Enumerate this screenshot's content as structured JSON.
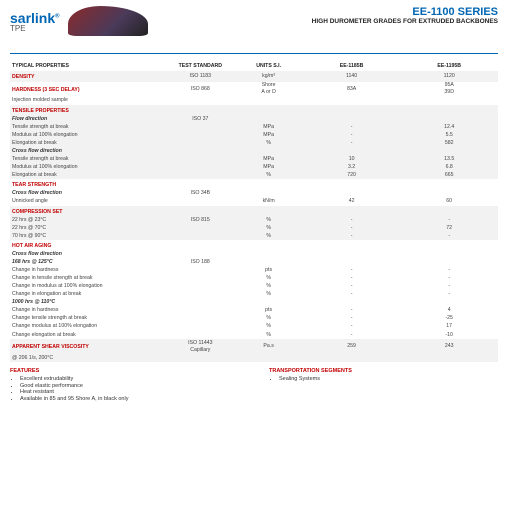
{
  "brand": {
    "name": "sarlink",
    "sub": "TPE",
    "reg": "®"
  },
  "series_title": "EE-1100 SERIES",
  "subtitle": "HIGH DUROMETER GRADES FOR EXTRUDED BACKBONES",
  "cols": {
    "prop": "TYPICAL PROPERTIES",
    "std": "TEST STANDARD",
    "unit": "UNITS S.I.",
    "v1": "EE-1185B",
    "v2": "EE-1195B"
  },
  "sections": [
    {
      "title": "DENSITY",
      "alt": true,
      "rows": [
        {
          "label": "",
          "std": "ISO 1183",
          "unit": "kg/m³",
          "v1": "1140",
          "v2": "1120"
        }
      ]
    },
    {
      "title": "HARDNESS (3 SEC DELAY)",
      "alt": false,
      "rows": [
        {
          "label": "Injection molded sample",
          "std": "ISO 868",
          "unit": "Shore\nA or D",
          "v1": "83A",
          "v2": "95A\n39D"
        }
      ]
    },
    {
      "title": "TENSILE PROPERTIES",
      "alt": true,
      "groups": [
        {
          "em": "Flow direction",
          "rows": [
            {
              "label": "Tensile strength at break",
              "std": "ISO 37",
              "unit": "MPa",
              "v1": "-",
              "v2": "12.4"
            },
            {
              "label": "Modulus at 100% elongation",
              "std": "",
              "unit": "MPa",
              "v1": "-",
              "v2": "5.5"
            },
            {
              "label": "Elongation at break",
              "std": "",
              "unit": "%",
              "v1": "-",
              "v2": "582"
            }
          ]
        },
        {
          "em": "Cross flow direction",
          "rows": [
            {
              "label": "Tensile strength at break",
              "std": "",
              "unit": "MPa",
              "v1": "10",
              "v2": "13.5"
            },
            {
              "label": "Modulus at 100% elongation",
              "std": "",
              "unit": "MPa",
              "v1": "3.2",
              "v2": "6.8"
            },
            {
              "label": "Elongation at break",
              "std": "",
              "unit": "%",
              "v1": "720",
              "v2": "665"
            }
          ]
        }
      ]
    },
    {
      "title": "TEAR STRENGTH",
      "alt": false,
      "groups": [
        {
          "em": "Cross flow direction",
          "rows": [
            {
              "label": "Unnicked angle",
              "std": "ISO 34B",
              "unit": "kN/m",
              "v1": "42",
              "v2": "60"
            }
          ]
        }
      ]
    },
    {
      "title": "COMPRESSION SET",
      "alt": true,
      "rows": [
        {
          "label": "22 hrs @ 23°C",
          "std": "ISO 815",
          "unit": "%",
          "v1": "-",
          "v2": "-"
        },
        {
          "label": "22 hrs @ 70°C",
          "std": "",
          "unit": "%",
          "v1": "-",
          "v2": "72"
        },
        {
          "label": "70 hrs @ 90°C",
          "std": "",
          "unit": "%",
          "v1": "-",
          "v2": "-"
        }
      ]
    },
    {
      "title": "HOT AIR AGING",
      "alt": false,
      "groups": [
        {
          "em": "Cross flow direction",
          "rows": []
        },
        {
          "em": "168 hrs @ 125°C",
          "rows": [
            {
              "label": "Change in hardness",
              "std": "ISO 188",
              "unit": "pts",
              "v1": "-",
              "v2": "-"
            },
            {
              "label": "Change in tensile strength at break",
              "std": "",
              "unit": "%",
              "v1": "-",
              "v2": "-"
            },
            {
              "label": "Change in modulus at 100% elongation",
              "std": "",
              "unit": "%",
              "v1": "-",
              "v2": "-"
            },
            {
              "label": "Change in elongation at break",
              "std": "",
              "unit": "%",
              "v1": "-",
              "v2": "-"
            }
          ]
        },
        {
          "em": "1000 hrs @ 110°C",
          "rows": [
            {
              "label": "Change in hardness",
              "std": "",
              "unit": "pts",
              "v1": "-",
              "v2": "4"
            },
            {
              "label": "Change tensile strength at break",
              "std": "",
              "unit": "%",
              "v1": "-",
              "v2": "-25"
            },
            {
              "label": "Change modulus at 100% elongation",
              "std": "",
              "unit": "%",
              "v1": "-",
              "v2": "17"
            },
            {
              "label": "Change elongation at break",
              "std": "",
              "unit": "%",
              "v1": "-",
              "v2": "-10"
            }
          ]
        }
      ]
    },
    {
      "title": "APPARENT SHEAR VISCOSITY",
      "alt": true,
      "rows": [
        {
          "label": "@ 206 1/s, 200°C",
          "std": "ISO 11443\nCapillary",
          "unit": "Pa.s",
          "v1": "259",
          "v2": "243"
        }
      ]
    }
  ],
  "features_title": "FEATURES",
  "features": [
    "Excellent extrudability",
    "Good elastic performance",
    "Heat resistant",
    "Available in 85 and 95 Shore A, in black only"
  ],
  "transport_title": "TRANSPORTATION SEGMENTS",
  "transport": [
    "Sealing Systems"
  ]
}
